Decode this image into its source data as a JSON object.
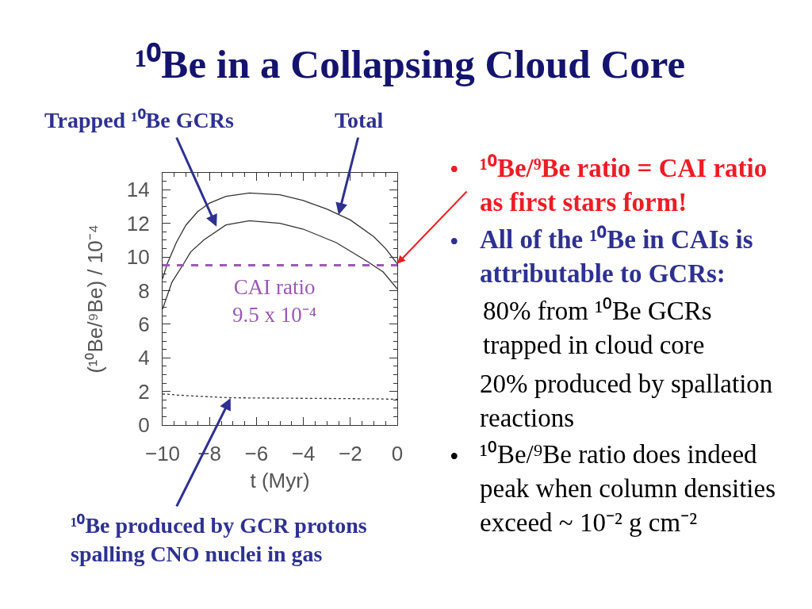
{
  "chart_data": {
    "type": "line",
    "title": "¹⁰Be in a Collapsing Cloud Core",
    "xlabel": "t (Myr)",
    "ylabel": "(¹⁰Be/⁹Be) / 10⁻⁴",
    "xlim": [
      -10,
      0
    ],
    "xticks": [
      -10,
      {
        "value": -9.5,
        "label": null
      },
      {
        "value": -9,
        "label": null
      },
      {
        "value": -8.5,
        "label": null
      },
      -8,
      {
        "value": -7.5,
        "label": null
      },
      {
        "value": -7,
        "label": null
      },
      {
        "value": -6.5,
        "label": null
      },
      -6,
      {
        "value": -5.5,
        "label": null
      },
      {
        "value": -5,
        "label": null
      },
      {
        "value": -4.5,
        "label": null
      },
      -4,
      {
        "value": -3.5,
        "label": null
      },
      {
        "value": -3,
        "label": null
      },
      {
        "value": -2.5,
        "label": null
      },
      -2,
      {
        "value": -1.5,
        "label": null
      },
      {
        "value": -1,
        "label": null
      },
      {
        "value": -0.5,
        "label": null
      },
      0
    ],
    "ylim": [
      0,
      15
    ],
    "yticks": [
      0,
      {
        "value": 0.5,
        "label": null
      },
      {
        "value": 1,
        "label": null
      },
      {
        "value": 1.5,
        "label": null
      },
      2,
      {
        "value": 2.5,
        "label": null
      },
      {
        "value": 3,
        "label": null
      },
      {
        "value": 3.5,
        "label": null
      },
      4,
      {
        "value": 4.5,
        "label": null
      },
      {
        "value": 5,
        "label": null
      },
      {
        "value": 5.5,
        "label": null
      },
      6,
      {
        "value": 6.5,
        "label": null
      },
      {
        "value": 7,
        "label": null
      },
      {
        "value": 7.5,
        "label": null
      },
      8,
      {
        "value": 8.5,
        "label": null
      },
      {
        "value": 9,
        "label": null
      },
      {
        "value": 9.5,
        "label": null
      },
      10,
      {
        "value": 10.5,
        "label": null
      },
      {
        "value": 11,
        "label": null
      },
      {
        "value": 11.5,
        "label": null
      },
      12,
      {
        "value": 12.5,
        "label": null
      },
      {
        "value": 13,
        "label": null
      },
      {
        "value": 13.5,
        "label": null
      },
      14,
      {
        "value": 14.5,
        "label": null
      }
    ],
    "marker": "none",
    "series": [
      {
        "color": "#333333",
        "line_style": "solid",
        "x": [
          -10,
          -9.8,
          -9.4,
          -9.0,
          -8.5,
          -8.0,
          -7.3,
          -6.3,
          -5.0,
          -4.0,
          -3.0,
          -2.0,
          -1.0,
          -0.5,
          0
        ],
        "values": [
          8.7,
          9.6,
          10.9,
          11.9,
          12.7,
          13.2,
          13.6,
          13.8,
          13.7,
          13.35,
          12.85,
          12.2,
          11.2,
          10.5,
          9.6
        ]
      },
      {
        "color": "#333333",
        "line_style": "solid",
        "x": [
          -10,
          -9.6,
          -9.1,
          -8.8,
          -8.25,
          -7.3,
          -6.3,
          -5.0,
          -4.0,
          -2.6,
          -1.3,
          -0.6,
          0
        ],
        "values": [
          6.9,
          8.5,
          9.6,
          10.3,
          11.0,
          11.9,
          12.15,
          12.0,
          11.65,
          10.85,
          9.75,
          9.1,
          8.1
        ]
      },
      {
        "color": "#333333",
        "line_style": "dotted",
        "x": [
          -10,
          -9,
          -8,
          -7,
          -5,
          -3,
          -1,
          0
        ],
        "values": [
          1.85,
          1.75,
          1.68,
          1.62,
          1.6,
          1.58,
          1.56,
          1.53
        ]
      }
    ],
    "ref_lines": [
      {
        "axis": "y",
        "value": 9.5,
        "label": "CAI ratio\n9.5 x 10⁻⁴",
        "color": "#9b59b6",
        "line_style": "dashed"
      }
    ],
    "annotations": [
      {
        "text": "Trapped ¹⁰Be GCRs",
        "x": -7.7,
        "y": 11.8
      },
      {
        "text": "Total",
        "x": -2.5,
        "y": 12.5
      },
      {
        "text": "¹⁰Be produced by GCR protons\nspalling CNO nuclei in gas",
        "x": -7.1,
        "y": 1.6
      },
      {
        "text": "¹⁰Be/⁹Be ratio = CAI ratio\nas first stars form!",
        "x": 0,
        "y": 9.6
      },
      "All of the ¹⁰Be in CAIs is\nattributable to GCRs:",
      "80% from ¹⁰Be GCRs\ntrapped in cloud core",
      "20% produced by spallation\nreactions",
      "¹⁰Be/⁹Be ratio does indeed\npeak when column densities\nexceed ~ 10⁻² g cm⁻²",
      "•",
      "•",
      "•"
    ]
  }
}
